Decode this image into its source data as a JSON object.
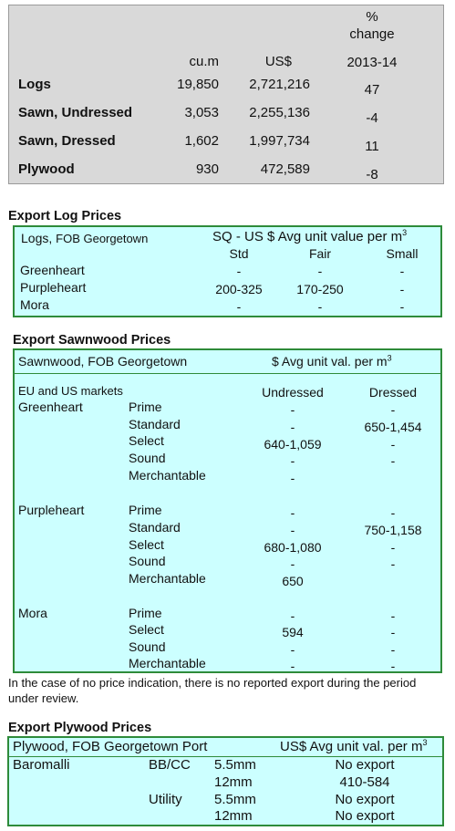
{
  "summary": {
    "header_pct": "%",
    "header_change": "change",
    "header_cum": "cu.m",
    "header_usd": "US$",
    "header_year": "2013-14",
    "rows": [
      {
        "label": "Logs",
        "cum": "19,850",
        "usd": "2,721,216",
        "change": "47"
      },
      {
        "label": "Sawn, Undressed",
        "cum": "3,053",
        "usd": "2,255,136",
        "change": "-4"
      },
      {
        "label": "Sawn, Dressed",
        "cum": "1,602",
        "usd": "1,997,734",
        "change": "11"
      },
      {
        "label": "Plywood",
        "cum": "930",
        "usd": "472,589",
        "change": "-8"
      }
    ]
  },
  "log_prices": {
    "title": "Export Log Prices",
    "subtitle_pre": "Logs, ",
    "subtitle_post": "FOB Georgetown",
    "unit": "SQ - US $ Avg unit value per m",
    "unit_sup": "3",
    "cols": [
      "Std",
      "Fair",
      "Small"
    ],
    "rows": [
      {
        "name": "Greenheart",
        "std": "-",
        "fair": "-",
        "small": "-"
      },
      {
        "name": "Purpleheart",
        "std": "200-325",
        "fair": "170-250",
        "small": "-"
      },
      {
        "name": "Mora",
        "std": "-",
        "fair": "-",
        "small": "-"
      }
    ]
  },
  "sawn_prices": {
    "title": "Export Sawnwood Prices",
    "subtitle": "Sawnwood, FOB Georgetown",
    "unit": "$ Avg unit val. per m",
    "unit_sup": "3",
    "markets": "EU and US markets",
    "col_undressed": "Undressed",
    "col_dressed": "Dressed",
    "species": [
      "Greenheart",
      "Purpleheart",
      "Mora"
    ],
    "greenheart": [
      {
        "grade": "Prime",
        "und": "-",
        "dre": "-"
      },
      {
        "grade": "Standard",
        "und": "-",
        "dre": "650-1,454"
      },
      {
        "grade": "Select",
        "und": "640-1,059",
        "dre": "-"
      },
      {
        "grade": "Sound",
        "und": "-",
        "dre": "-"
      },
      {
        "grade": "Merchantable",
        "und": "-",
        "dre": ""
      }
    ],
    "purpleheart": [
      {
        "grade": "Prime",
        "und": "-",
        "dre": "-"
      },
      {
        "grade": "Standard",
        "und": "-",
        "dre": "750-1,158"
      },
      {
        "grade": "Select",
        "und": "680-1,080",
        "dre": "-"
      },
      {
        "grade": "Sound",
        "und": "-",
        "dre": "-"
      },
      {
        "grade": "Merchantable",
        "und": "650",
        "dre": ""
      }
    ],
    "mora": [
      {
        "grade": "Prime",
        "und": "-",
        "dre": "-"
      },
      {
        "grade": "Select",
        "und": "594",
        "dre": "-"
      },
      {
        "grade": "Sound",
        "und": "-",
        "dre": "-"
      },
      {
        "grade": "Merchantable",
        "und": "-",
        "dre": "-"
      }
    ],
    "note": "In the case of no price indication, there is no reported export during the period under review."
  },
  "plywood_prices": {
    "title": "Export Plywood Prices",
    "subtitle": "Plywood, FOB Georgetown Port",
    "unit": "US$ Avg unit val. per m",
    "unit_sup": "3",
    "species": "Baromalli",
    "grade1": "BB/CC",
    "grade2": "Utility",
    "rows": [
      {
        "thick": "5.5mm",
        "price": "No export"
      },
      {
        "thick": "12mm",
        "price": "410-584"
      },
      {
        "thick": "5.5mm",
        "price": "No export"
      },
      {
        "thick": "12mm",
        "price": "No export"
      }
    ]
  }
}
